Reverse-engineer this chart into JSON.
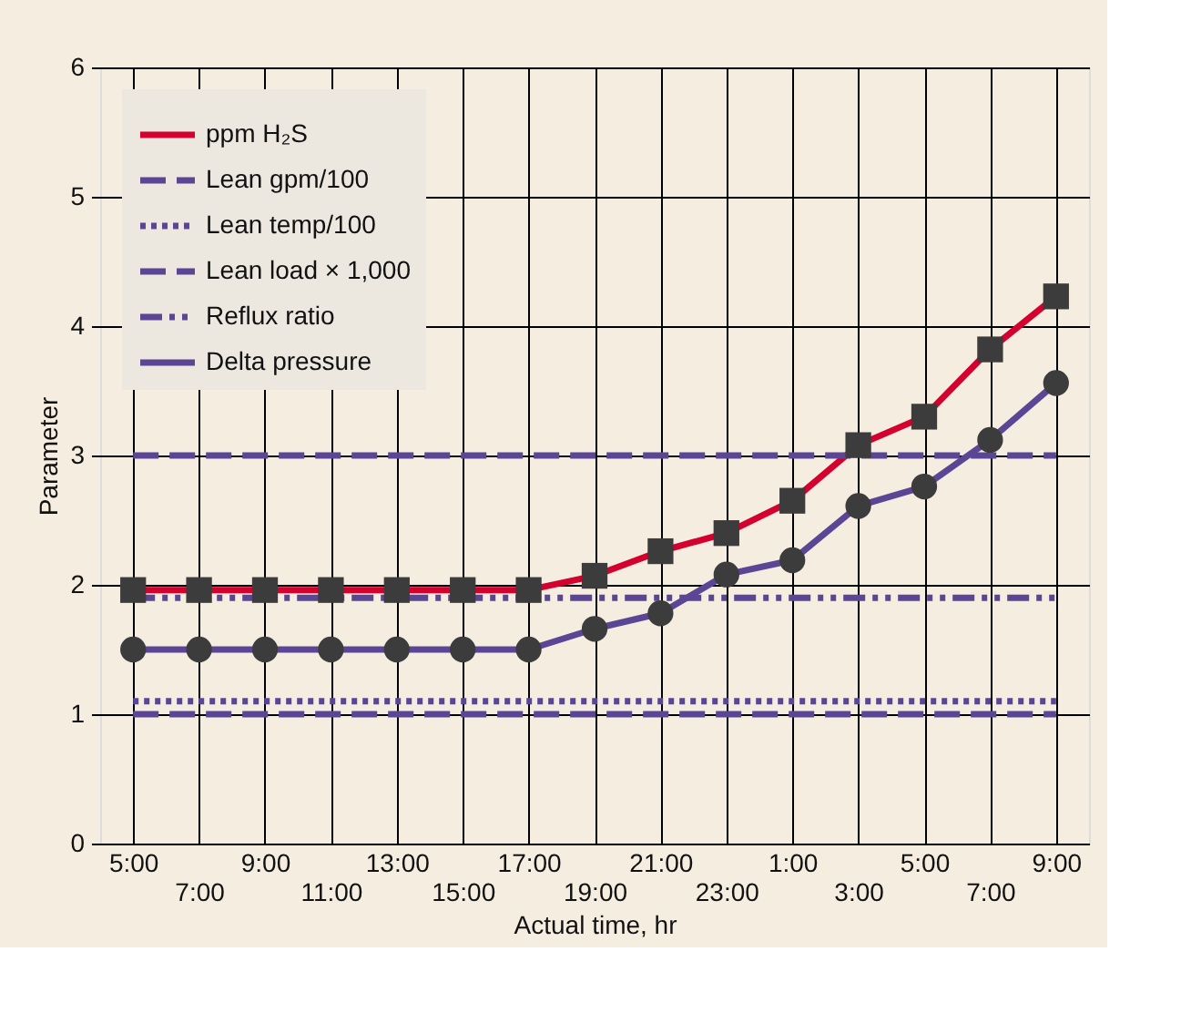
{
  "chart_data": {
    "type": "line",
    "xlabel": "Actual time, hr",
    "ylabel": "Parameter",
    "categories": [
      "5:00",
      "7:00",
      "9:00",
      "11:00",
      "13:00",
      "15:00",
      "17:00",
      "19:00",
      "21:00",
      "23:00",
      "1:00",
      "3:00",
      "5:00",
      "7:00",
      "9:00"
    ],
    "ylim": [
      0,
      6
    ],
    "yticks": [
      0,
      1,
      2,
      3,
      4,
      5,
      6
    ],
    "grid": true,
    "legend": "top left",
    "series": [
      {
        "name": "ppm H₂S",
        "color": "#d4002e",
        "line_style": "solid",
        "marker": "square",
        "values": [
          1.96,
          1.96,
          1.96,
          1.96,
          1.96,
          1.96,
          1.96,
          2.07,
          2.26,
          2.4,
          2.65,
          3.08,
          3.3,
          3.82,
          4.23
        ]
      },
      {
        "name": "Lean gpm/100",
        "color": "#5b4696",
        "line_style": "dashed",
        "marker": "none",
        "values": [
          3.0,
          3.0,
          3.0,
          3.0,
          3.0,
          3.0,
          3.0,
          3.0,
          3.0,
          3.0,
          3.0,
          3.0,
          3.0,
          3.0,
          3.0
        ]
      },
      {
        "name": "Lean temp/100",
        "color": "#5b4696",
        "line_style": "dotted",
        "marker": "none",
        "values": [
          1.1,
          1.1,
          1.1,
          1.1,
          1.1,
          1.1,
          1.1,
          1.1,
          1.1,
          1.1,
          1.1,
          1.1,
          1.1,
          1.1,
          1.1
        ]
      },
      {
        "name": "Lean load × 1,000",
        "color": "#5b4696",
        "line_style": "dashed",
        "marker": "none",
        "values": [
          1.0,
          1.0,
          1.0,
          1.0,
          1.0,
          1.0,
          1.0,
          1.0,
          1.0,
          1.0,
          1.0,
          1.0,
          1.0,
          1.0,
          1.0
        ]
      },
      {
        "name": "Reflux ratio",
        "color": "#5b4696",
        "line_style": "dashdot",
        "marker": "none",
        "values": [
          1.9,
          1.9,
          1.9,
          1.9,
          1.9,
          1.9,
          1.9,
          1.9,
          1.9,
          1.9,
          1.9,
          1.9,
          1.9,
          1.9,
          1.9
        ]
      },
      {
        "name": "Delta pressure",
        "color": "#5b4696",
        "line_style": "solid",
        "marker": "circle",
        "values": [
          1.5,
          1.5,
          1.5,
          1.5,
          1.5,
          1.5,
          1.5,
          1.66,
          1.78,
          2.08,
          2.19,
          2.61,
          2.76,
          3.12,
          3.56
        ]
      }
    ]
  }
}
